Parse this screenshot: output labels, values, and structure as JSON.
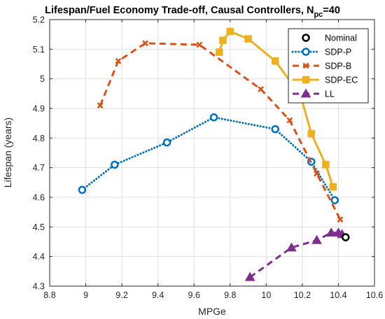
{
  "chart_data": {
    "type": "line",
    "title": "Lifespan/Fuel Economy Trade-off, Causal Controllers, N",
    "title_subscript": "pc",
    "title_suffix": "=40",
    "xlabel": "MPGe",
    "ylabel": "Lifespan (years)",
    "xlim": [
      8.8,
      10.6
    ],
    "ylim": [
      4.3,
      5.2
    ],
    "xticks": [
      "8.8",
      "9",
      "9.2",
      "9.4",
      "9.6",
      "9.8",
      "10",
      "10.2",
      "10.4",
      "10.6"
    ],
    "yticks": [
      "4.3",
      "4.4",
      "4.5",
      "4.6",
      "4.7",
      "4.8",
      "4.9",
      "5",
      "5.1",
      "5.2"
    ],
    "grid": true,
    "legend_position": "top-right",
    "series": [
      {
        "name": "Nominal",
        "color": "#000000",
        "marker": "circle",
        "line_style": "none",
        "x": [
          10.44
        ],
        "y": [
          4.465
        ]
      },
      {
        "name": "SDP-P",
        "color": "#0072BD",
        "marker": "circle",
        "line_style": "dotted",
        "x": [
          8.98,
          9.16,
          9.45,
          9.71,
          10.05,
          10.25,
          10.38
        ],
        "y": [
          4.625,
          4.71,
          4.785,
          4.87,
          4.83,
          4.72,
          4.59
        ]
      },
      {
        "name": "SDP-B",
        "color": "#D95319",
        "marker": "x",
        "line_style": "dashed",
        "x": [
          9.08,
          9.18,
          9.33,
          9.63,
          9.97,
          10.13,
          10.28,
          10.41
        ],
        "y": [
          4.91,
          5.06,
          5.12,
          5.115,
          4.965,
          4.86,
          4.68,
          4.525
        ]
      },
      {
        "name": "SDP-EC",
        "color": "#EDB120",
        "marker": "square",
        "line_style": "solid",
        "x": [
          9.74,
          9.76,
          9.8,
          9.9,
          10.05,
          10.19,
          10.25,
          10.33,
          10.37
        ],
        "y": [
          5.09,
          5.13,
          5.16,
          5.135,
          5.06,
          4.945,
          4.815,
          4.71,
          4.635
        ]
      },
      {
        "name": "LL",
        "color": "#7E2F8E",
        "marker": "triangle",
        "line_style": "dashed",
        "x": [
          9.91,
          10.14,
          10.28,
          10.36,
          10.4,
          10.42
        ],
        "y": [
          4.33,
          4.43,
          4.455,
          4.48,
          4.48,
          4.475
        ]
      }
    ]
  }
}
